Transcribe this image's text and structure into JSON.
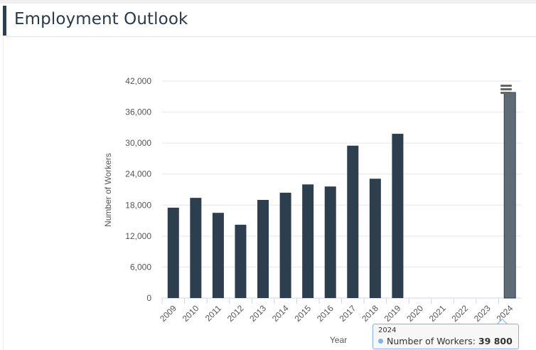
{
  "header": {
    "title": "Employment Outlook"
  },
  "chart_data": {
    "type": "bar",
    "title": "",
    "xlabel": "Year",
    "ylabel": "Number of Workers",
    "ylim": [
      0,
      42000
    ],
    "yticks": [
      0,
      6000,
      12000,
      18000,
      24000,
      30000,
      36000,
      42000
    ],
    "ytick_labels": [
      "0",
      "6,000",
      "12,000",
      "18,000",
      "24,000",
      "30,000",
      "36,000",
      "42,000"
    ],
    "categories": [
      "2009",
      "2010",
      "2011",
      "2012",
      "2013",
      "2014",
      "2015",
      "2016",
      "2017",
      "2018",
      "2019",
      "2020",
      "2021",
      "2022",
      "2023",
      "2024"
    ],
    "series": [
      {
        "name": "Number of Workers",
        "color": "#2d3e4f",
        "values": [
          17500,
          19400,
          16500,
          14200,
          19000,
          20400,
          22000,
          21600,
          29500,
          23100,
          31800,
          null,
          null,
          null,
          null,
          39800
        ]
      }
    ],
    "grid": true,
    "highlighted_index": 15,
    "highlight_color": "#5f6b75"
  },
  "tooltip": {
    "category": "2024",
    "series": "Number of Workers:",
    "value": "39 800"
  },
  "menu": {
    "icon": "hamburger-menu-icon"
  }
}
